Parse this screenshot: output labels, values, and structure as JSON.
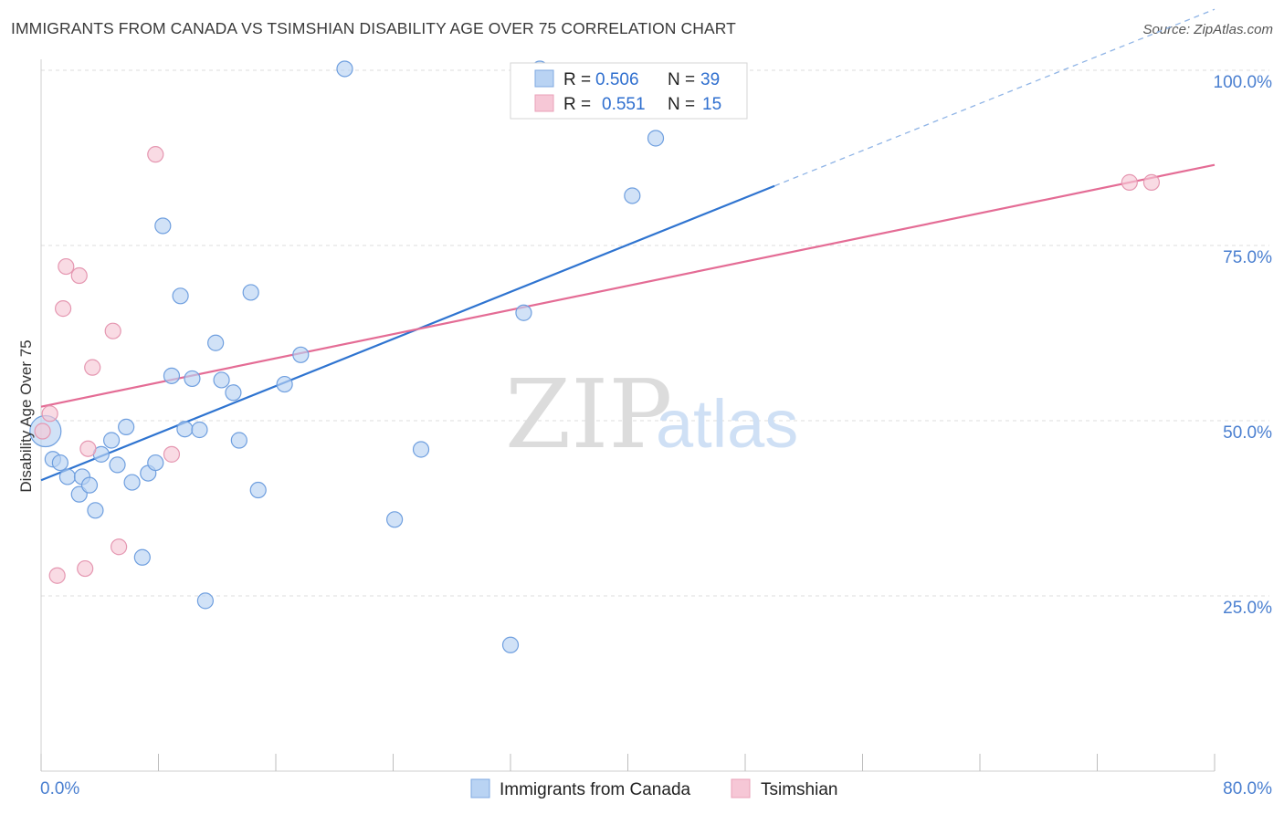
{
  "title": "IMMIGRANTS FROM CANADA VS TSIMSHIAN DISABILITY AGE OVER 75 CORRELATION CHART",
  "source": "Source: ZipAtlas.com",
  "colors": {
    "blue": "#2f74d0",
    "blue_fill": "#b9d3f3",
    "pink": "#e46c95",
    "pink_fill": "#f6c7d6",
    "grid": "#dcdcdc",
    "tick_label": "#4a7fd0"
  },
  "legend": {
    "rows": [
      {
        "r_label": "R =",
        "r_value": "0.506",
        "n_label": "N =",
        "n_value": "39"
      },
      {
        "r_label": "R =",
        "r_value": "0.551",
        "n_label": "N =",
        "n_value": "15"
      }
    ]
  },
  "watermark": {
    "zip": "ZIP",
    "atlas": "atlas"
  },
  "chart_data": {
    "type": "scatter",
    "title": "IMMIGRANTS FROM CANADA VS TSIMSHIAN DISABILITY AGE OVER 75 CORRELATION CHART",
    "xlabel": "",
    "ylabel": "Disability Age Over 75",
    "xlim": [
      0,
      80
    ],
    "ylim": [
      0,
      100
    ],
    "x_tick_labels": [
      "0.0%",
      "80.0%"
    ],
    "y_tick_labels": [
      "25.0%",
      "50.0%",
      "75.0%",
      "100.0%"
    ],
    "y_ticks": [
      25,
      50,
      75,
      100
    ],
    "grid": true,
    "legend_position": "top-center",
    "series": [
      {
        "name": "Immigrants from Canada",
        "color": "#2f74d0",
        "R": 0.506,
        "N": 39,
        "trend": {
          "x0": 0,
          "y0": 41.5,
          "x1": 50,
          "y1": 83.5,
          "dashed_to_x": 80
        },
        "points": [
          [
            0.3,
            48.5
          ],
          [
            0.8,
            44.5
          ],
          [
            1.3,
            44
          ],
          [
            1.8,
            42
          ],
          [
            2.6,
            39.5
          ],
          [
            2.8,
            42
          ],
          [
            3.3,
            40.8
          ],
          [
            3.7,
            37.2
          ],
          [
            4.1,
            45.2
          ],
          [
            4.8,
            47.2
          ],
          [
            5.2,
            43.7
          ],
          [
            5.8,
            49.1
          ],
          [
            6.2,
            41.2
          ],
          [
            6.9,
            30.5
          ],
          [
            7.3,
            42.5
          ],
          [
            7.8,
            44
          ],
          [
            8.3,
            77.8
          ],
          [
            8.9,
            56.4
          ],
          [
            9.5,
            67.8
          ],
          [
            9.8,
            48.8
          ],
          [
            10.3,
            56
          ],
          [
            10.8,
            48.7
          ],
          [
            11.2,
            24.3
          ],
          [
            11.9,
            61.1
          ],
          [
            12.3,
            55.8
          ],
          [
            13.1,
            54
          ],
          [
            13.5,
            47.2
          ],
          [
            14.3,
            68.3
          ],
          [
            14.8,
            40.1
          ],
          [
            16.6,
            55.2
          ],
          [
            17.7,
            59.4
          ],
          [
            20.7,
            100.2
          ],
          [
            24.1,
            35.9
          ],
          [
            25.9,
            45.9
          ],
          [
            32.0,
            18.0
          ],
          [
            32.9,
            65.4
          ],
          [
            34.0,
            100.2
          ],
          [
            40.3,
            82.1
          ],
          [
            41.9,
            90.3
          ]
        ]
      },
      {
        "name": "Tsimshian",
        "color": "#e46c95",
        "R": 0.551,
        "N": 15,
        "trend": {
          "x0": 0,
          "y0": 52,
          "x1": 80,
          "y1": 86.5
        },
        "points": [
          [
            0.1,
            48.5
          ],
          [
            0.6,
            51
          ],
          [
            1.1,
            27.9
          ],
          [
            1.5,
            66
          ],
          [
            1.7,
            72
          ],
          [
            2.6,
            70.7
          ],
          [
            3.0,
            28.9
          ],
          [
            3.2,
            46
          ],
          [
            3.5,
            57.6
          ],
          [
            4.9,
            62.8
          ],
          [
            5.3,
            32
          ],
          [
            7.8,
            88
          ],
          [
            8.9,
            45.2
          ],
          [
            74.2,
            84
          ],
          [
            75.7,
            84
          ]
        ]
      }
    ]
  }
}
